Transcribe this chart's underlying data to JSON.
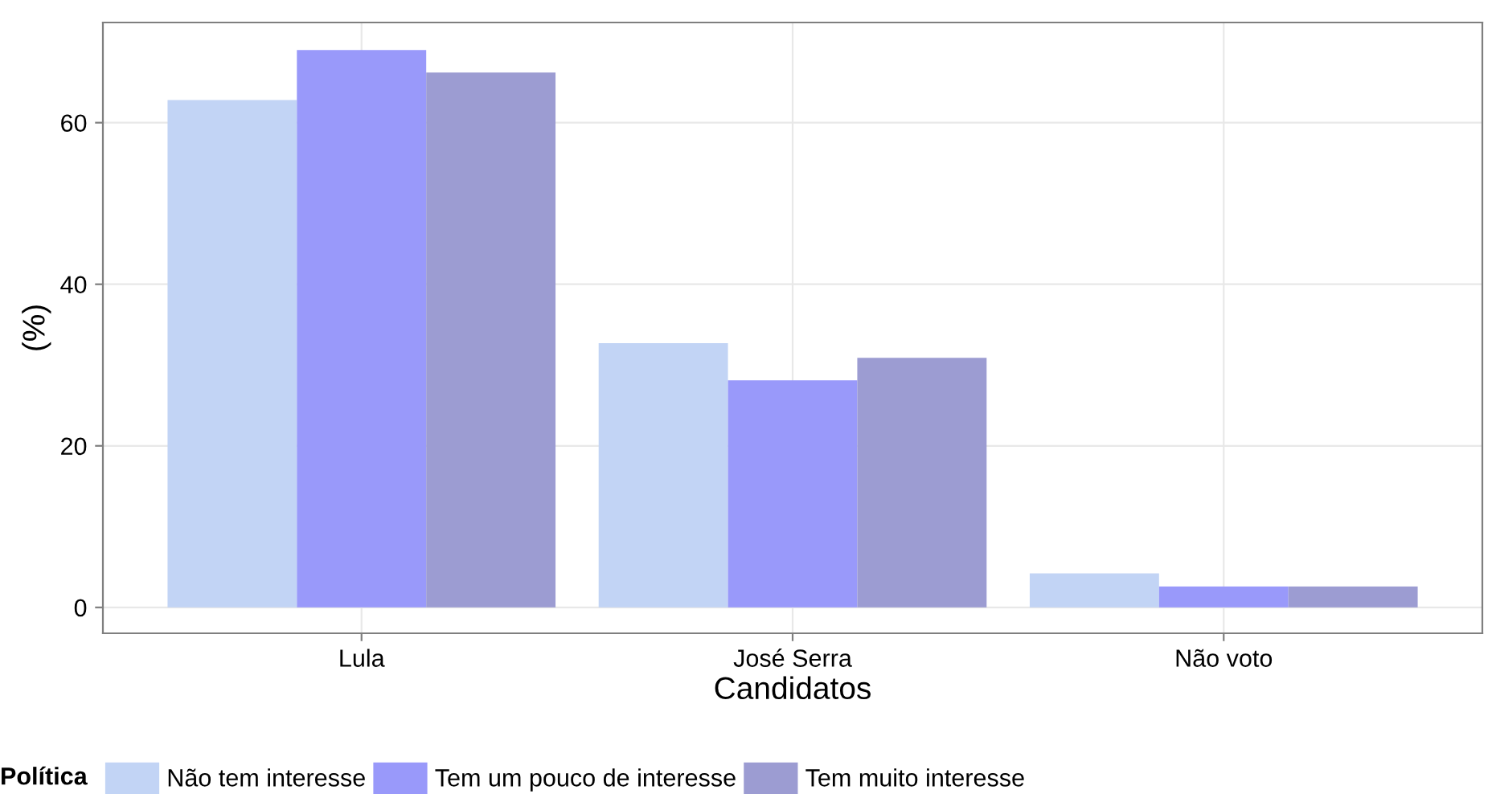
{
  "chart_data": {
    "type": "bar",
    "xlabel": "Candidatos",
    "ylabel": "(%)",
    "legend_title": "Política",
    "categories": [
      "Lula",
      "José Serra",
      "Não voto"
    ],
    "series": [
      {
        "name": "Não tem interesse",
        "color": "#c2d4f5",
        "values": [
          62.8,
          32.7,
          4.2
        ]
      },
      {
        "name": "Tem um pouco de interesse",
        "color": "#9999fa",
        "values": [
          69.0,
          28.1,
          2.6
        ]
      },
      {
        "name": "Tem muito interesse",
        "color": "#9c9cd2",
        "values": [
          66.2,
          30.9,
          2.6
        ]
      }
    ],
    "ylim": [
      -3.2,
      72.4
    ],
    "yticks": [
      0,
      20,
      40,
      60
    ],
    "grid": true,
    "legend": "bottom"
  }
}
